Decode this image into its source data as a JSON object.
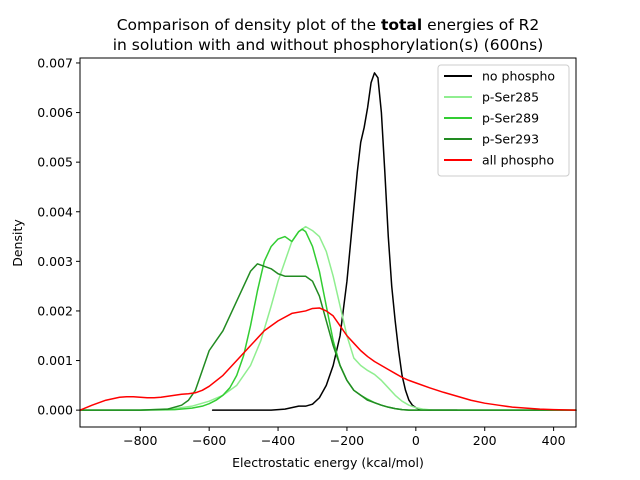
{
  "chart_data": {
    "type": "line",
    "title_line1_pre": "Comparison of density plot of the ",
    "title_line1_bold": "total",
    "title_line1_post": " energies of R2",
    "title_line2": "in solution with and without phosphorylation(s) (600ns)",
    "xlabel": "Electrostatic energy (kcal/mol)",
    "ylabel": "Density",
    "xlim": [
      -975,
      465
    ],
    "ylim": [
      -0.00034,
      0.0071
    ],
    "xticks": [
      -800,
      -600,
      -400,
      -200,
      0,
      200,
      400
    ],
    "xtick_labels": [
      "−800",
      "−600",
      "−400",
      "−200",
      "0",
      "200",
      "400"
    ],
    "yticks": [
      0.0,
      0.001,
      0.002,
      0.003,
      0.004,
      0.005,
      0.006,
      0.007
    ],
    "ytick_labels": [
      "0.000",
      "0.001",
      "0.002",
      "0.003",
      "0.004",
      "0.005",
      "0.006",
      "0.007"
    ],
    "grid": false,
    "legend_position": "top-right",
    "series": [
      {
        "name": "no phospho",
        "color": "#000000",
        "x": [
          -590,
          -500,
          -420,
          -380,
          -360,
          -340,
          -320,
          -300,
          -280,
          -260,
          -240,
          -220,
          -200,
          -185,
          -170,
          -160,
          -150,
          -140,
          -130,
          -120,
          -110,
          -100,
          -90,
          -80,
          -70,
          -60,
          -50,
          -40,
          -30,
          -20,
          -10,
          0,
          10,
          20,
          40,
          60,
          80,
          120
        ],
        "y": [
          0.0,
          0.0,
          0.0,
          2e-05,
          5e-05,
          8e-05,
          8e-05,
          0.00012,
          0.00025,
          0.0005,
          0.0009,
          0.0015,
          0.0026,
          0.0037,
          0.0048,
          0.0054,
          0.0057,
          0.0061,
          0.0066,
          0.0068,
          0.0067,
          0.006,
          0.0048,
          0.0035,
          0.0025,
          0.0018,
          0.0012,
          0.0007,
          0.0004,
          0.0002,
          0.0001,
          5e-05,
          2e-05,
          1e-05,
          0.0,
          0.0,
          0.0,
          0.0
        ]
      },
      {
        "name": "p-Ser285",
        "color": "#90ee90",
        "x": [
          -975,
          -800,
          -700,
          -650,
          -600,
          -560,
          -520,
          -480,
          -450,
          -420,
          -400,
          -380,
          -360,
          -340,
          -320,
          -300,
          -280,
          -260,
          -240,
          -220,
          -200,
          -180,
          -160,
          -140,
          -120,
          -100,
          -80,
          -60,
          -40,
          -20,
          0,
          20,
          50,
          100,
          200,
          465
        ],
        "y": [
          0.0,
          0.0,
          3e-05,
          8e-05,
          0.00018,
          0.0003,
          0.0005,
          0.0009,
          0.0014,
          0.0021,
          0.0026,
          0.003,
          0.0034,
          0.0036,
          0.0037,
          0.00362,
          0.0035,
          0.0032,
          0.0027,
          0.0021,
          0.0015,
          0.00105,
          0.0009,
          0.0008,
          0.00072,
          0.0006,
          0.00045,
          0.0003,
          0.00018,
          0.0001,
          5e-05,
          2e-05,
          0.0,
          0.0,
          0.0,
          0.0
        ]
      },
      {
        "name": "p-Ser289",
        "color": "#32cd32",
        "x": [
          -975,
          -800,
          -700,
          -650,
          -620,
          -600,
          -580,
          -560,
          -540,
          -520,
          -500,
          -480,
          -460,
          -440,
          -420,
          -400,
          -380,
          -360,
          -340,
          -330,
          -320,
          -300,
          -280,
          -260,
          -240,
          -220,
          -200,
          -180,
          -160,
          -140,
          -120,
          -100,
          -80,
          -60,
          -40,
          -20,
          0,
          40,
          100,
          200,
          465
        ],
        "y": [
          0.0,
          0.0,
          1e-05,
          4e-05,
          8e-05,
          0.00013,
          0.0002,
          0.0003,
          0.00045,
          0.0007,
          0.0011,
          0.0017,
          0.0024,
          0.003,
          0.0033,
          0.00345,
          0.0035,
          0.0034,
          0.0036,
          0.00365,
          0.0036,
          0.0033,
          0.0028,
          0.0021,
          0.0014,
          0.0009,
          0.0006,
          0.0004,
          0.0003,
          0.00022,
          0.00015,
          0.0001,
          6e-05,
          3e-05,
          1e-05,
          0.0,
          0.0,
          0.0,
          0.0,
          0.0,
          0.0
        ]
      },
      {
        "name": "p-Ser293",
        "color": "#228b22",
        "x": [
          -975,
          -800,
          -720,
          -680,
          -660,
          -640,
          -620,
          -600,
          -580,
          -560,
          -540,
          -520,
          -500,
          -480,
          -460,
          -440,
          -420,
          -400,
          -380,
          -360,
          -340,
          -320,
          -300,
          -280,
          -260,
          -240,
          -220,
          -200,
          -180,
          -160,
          -140,
          -120,
          -100,
          -80,
          -60,
          -40,
          -20,
          0,
          40,
          100,
          200,
          465
        ],
        "y": [
          0.0,
          0.0,
          2e-05,
          0.0001,
          0.0002,
          0.0004,
          0.0008,
          0.0012,
          0.0014,
          0.0016,
          0.0019,
          0.0022,
          0.0025,
          0.0028,
          0.00295,
          0.0029,
          0.00285,
          0.00275,
          0.0027,
          0.0027,
          0.0027,
          0.0027,
          0.0026,
          0.0023,
          0.0018,
          0.0013,
          0.0009,
          0.0006,
          0.0004,
          0.0003,
          0.0002,
          0.00015,
          0.0001,
          6e-05,
          3e-05,
          1e-05,
          0.0,
          0.0,
          0.0,
          0.0,
          0.0,
          0.0
        ]
      },
      {
        "name": "all phospho",
        "color": "#ff0000",
        "x": [
          -975,
          -940,
          -900,
          -860,
          -840,
          -820,
          -800,
          -780,
          -760,
          -740,
          -720,
          -700,
          -680,
          -660,
          -640,
          -620,
          -600,
          -560,
          -520,
          -480,
          -440,
          -400,
          -360,
          -320,
          -300,
          -280,
          -260,
          -240,
          -220,
          -200,
          -180,
          -160,
          -140,
          -120,
          -100,
          -80,
          -60,
          -40,
          -20,
          0,
          40,
          80,
          120,
          160,
          200,
          240,
          280,
          320,
          360,
          400,
          465
        ],
        "y": [
          0.0,
          0.0001,
          0.0002,
          0.00026,
          0.00027,
          0.00027,
          0.00026,
          0.00025,
          0.00025,
          0.00026,
          0.00028,
          0.0003,
          0.00032,
          0.00033,
          0.00035,
          0.0004,
          0.00048,
          0.0007,
          0.001,
          0.0013,
          0.0016,
          0.0018,
          0.00195,
          0.002,
          0.00205,
          0.00206,
          0.002,
          0.0019,
          0.0017,
          0.0015,
          0.00135,
          0.0012,
          0.00108,
          0.00098,
          0.0009,
          0.00082,
          0.00074,
          0.00066,
          0.0006,
          0.00055,
          0.00045,
          0.00036,
          0.00028,
          0.0002,
          0.00014,
          0.0001,
          6e-05,
          4e-05,
          2e-05,
          1e-05,
          0.0
        ]
      }
    ]
  }
}
